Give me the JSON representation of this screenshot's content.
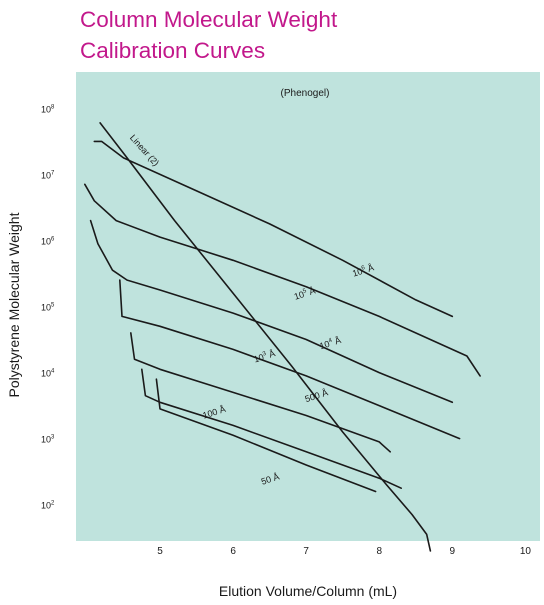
{
  "title_lines": [
    "Column Molecular Weight",
    "Calibration Curves"
  ],
  "chart_data": {
    "type": "line",
    "annotation": "(Phenogel)",
    "xlabel": "Elution Volume/Column (mL)",
    "ylabel": "Polystyrene Molecular Weight",
    "x_ticks": [
      5,
      6,
      7,
      8,
      9,
      10
    ],
    "y_ticks": [
      {
        "value": 100,
        "base": "10",
        "exp": "2"
      },
      {
        "value": 1000,
        "base": "10",
        "exp": "3"
      },
      {
        "value": 10000,
        "base": "10",
        "exp": "4"
      },
      {
        "value": 100000,
        "base": "10",
        "exp": "5"
      },
      {
        "value": 1000000,
        "base": "10",
        "exp": "6"
      },
      {
        "value": 10000000,
        "base": "10",
        "exp": "7"
      },
      {
        "value": 100000000,
        "base": "10",
        "exp": "8"
      }
    ],
    "y_scale": "log",
    "xlim": [
      3.85,
      10.2
    ],
    "ylim_log10": [
      1.45,
      8.55
    ],
    "grid": false,
    "background_color": "#bfe3dd",
    "line_color": "#1a1a1a",
    "series": [
      {
        "name": "Linear (2)",
        "label_parts": [
          {
            "t": "Linear (2)"
          }
        ],
        "label_at": [
          4.58,
          7.55
        ],
        "label_angle": 48,
        "points": [
          [
            4.18,
            7.78
          ],
          [
            4.55,
            7.25
          ],
          [
            5.2,
            6.3
          ],
          [
            6.0,
            5.2
          ],
          [
            6.8,
            4.1
          ],
          [
            7.5,
            3.1
          ],
          [
            8.1,
            2.3
          ],
          [
            8.45,
            1.85
          ],
          [
            8.65,
            1.55
          ],
          [
            8.7,
            1.3
          ]
        ]
      },
      {
        "name": "10⁶ Å",
        "label_parts": [
          {
            "t": "10"
          },
          {
            "t": "6",
            "sup": true
          },
          {
            "t": " Å"
          }
        ],
        "label_at": [
          7.65,
          5.45
        ],
        "label_angle": -18,
        "points": [
          [
            4.1,
            7.5
          ],
          [
            4.2,
            7.5
          ],
          [
            4.5,
            7.25
          ],
          [
            5.5,
            6.75
          ],
          [
            6.5,
            6.25
          ],
          [
            7.5,
            5.7
          ],
          [
            8.5,
            5.1
          ],
          [
            9.0,
            4.85
          ]
        ]
      },
      {
        "name": "10⁵ Å",
        "label_parts": [
          {
            "t": "10"
          },
          {
            "t": "5",
            "sup": true
          },
          {
            "t": " Å"
          }
        ],
        "label_at": [
          6.85,
          5.1
        ],
        "label_angle": -18,
        "points": [
          [
            3.97,
            6.85
          ],
          [
            4.1,
            6.6
          ],
          [
            4.4,
            6.3
          ],
          [
            5.0,
            6.05
          ],
          [
            6.0,
            5.7
          ],
          [
            7.0,
            5.3
          ],
          [
            8.0,
            4.85
          ],
          [
            8.9,
            4.4
          ],
          [
            9.2,
            4.25
          ],
          [
            9.38,
            3.95
          ]
        ]
      },
      {
        "name": "10⁴ Å",
        "label_parts": [
          {
            "t": "10"
          },
          {
            "t": "4",
            "sup": true
          },
          {
            "t": " Å"
          }
        ],
        "label_at": [
          7.2,
          4.35
        ],
        "label_angle": -18,
        "points": [
          [
            4.05,
            6.3
          ],
          [
            4.15,
            5.95
          ],
          [
            4.35,
            5.55
          ],
          [
            4.55,
            5.4
          ],
          [
            5.0,
            5.25
          ],
          [
            6.0,
            4.9
          ],
          [
            7.0,
            4.5
          ],
          [
            8.0,
            4.0
          ],
          [
            9.0,
            3.55
          ]
        ]
      },
      {
        "name": "10³ Å",
        "label_parts": [
          {
            "t": "10"
          },
          {
            "t": "3",
            "sup": true
          },
          {
            "t": " Å"
          }
        ],
        "label_at": [
          6.3,
          4.15
        ],
        "label_angle": -18,
        "points": [
          [
            4.45,
            5.4
          ],
          [
            4.48,
            4.85
          ],
          [
            5.0,
            4.7
          ],
          [
            6.0,
            4.35
          ],
          [
            7.0,
            3.95
          ],
          [
            8.0,
            3.5
          ],
          [
            9.1,
            3.0
          ]
        ]
      },
      {
        "name": "500 Å",
        "label_parts": [
          {
            "t": "500 Å"
          }
        ],
        "label_at": [
          7.0,
          3.55
        ],
        "label_angle": -18,
        "points": [
          [
            4.6,
            4.6
          ],
          [
            4.65,
            4.2
          ],
          [
            5.0,
            4.05
          ],
          [
            6.0,
            3.7
          ],
          [
            7.0,
            3.35
          ],
          [
            8.0,
            2.95
          ],
          [
            8.15,
            2.8
          ]
        ]
      },
      {
        "name": "100 Å",
        "label_parts": [
          {
            "t": "100 Å"
          }
        ],
        "label_at": [
          5.6,
          3.3
        ],
        "label_angle": -18,
        "points": [
          [
            4.75,
            4.05
          ],
          [
            4.8,
            3.65
          ],
          [
            5.0,
            3.55
          ],
          [
            6.0,
            3.2
          ],
          [
            7.0,
            2.8
          ],
          [
            8.0,
            2.4
          ],
          [
            8.3,
            2.25
          ]
        ]
      },
      {
        "name": "50 Å",
        "label_parts": [
          {
            "t": "50 Å"
          }
        ],
        "label_at": [
          6.4,
          2.3
        ],
        "label_angle": -18,
        "points": [
          [
            4.95,
            3.9
          ],
          [
            5.0,
            3.45
          ],
          [
            6.0,
            3.05
          ],
          [
            7.0,
            2.6
          ],
          [
            7.95,
            2.2
          ]
        ]
      }
    ]
  }
}
